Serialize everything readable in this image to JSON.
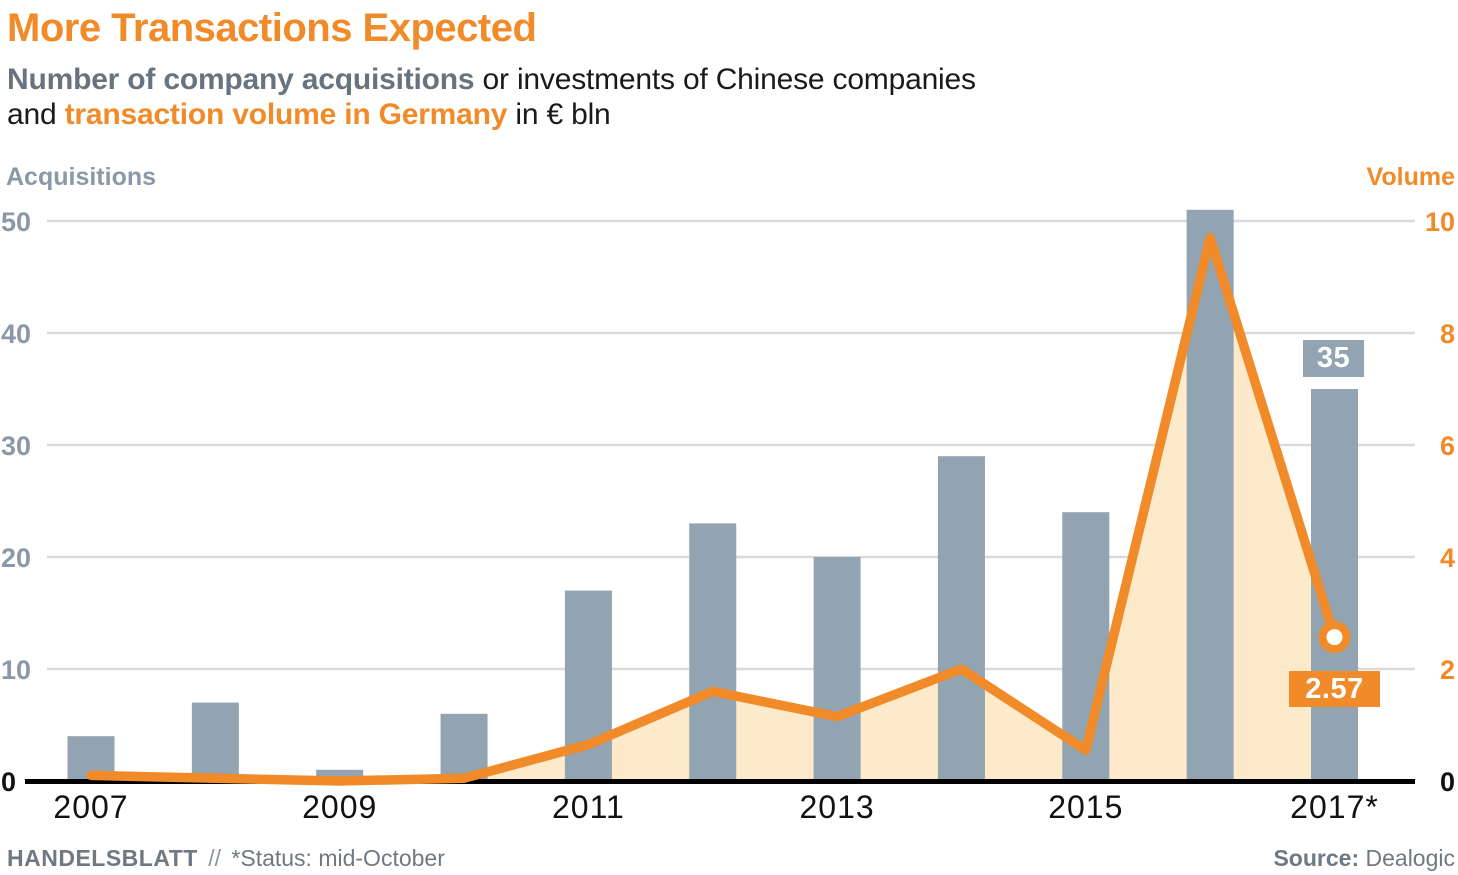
{
  "header": {
    "title": "More Transactions Expected",
    "subtitle": {
      "line1_bold": "Number of company acquisitions",
      "line1_rest": " or investments of Chinese companies",
      "line2_pre": "and ",
      "line2_orange": "transaction volume in Germany",
      "line2_rest": " in € bln"
    }
  },
  "axes": {
    "left_title": "Acquisitions",
    "right_title": "Volume",
    "left_ticks": [
      0,
      10,
      20,
      30,
      40,
      50
    ],
    "right_ticks": [
      0,
      2,
      4,
      6,
      8,
      10
    ],
    "x_tick_labels": [
      "2007",
      "2009",
      "2011",
      "2013",
      "2015",
      "2017*"
    ]
  },
  "chart_data": {
    "type": "combo",
    "categories": [
      2007,
      2008,
      2009,
      2010,
      2011,
      2012,
      2013,
      2014,
      2015,
      2016,
      2017
    ],
    "series": [
      {
        "name": "Acquisitions",
        "type": "bar",
        "axis": "left",
        "values": [
          4,
          7,
          1,
          6,
          17,
          23,
          20,
          29,
          24,
          51,
          35
        ]
      },
      {
        "name": "Volume",
        "type": "line",
        "axis": "right",
        "values": [
          0.1,
          0.05,
          0.0,
          0.05,
          0.65,
          1.6,
          1.15,
          2.0,
          0.55,
          9.7,
          2.57
        ]
      }
    ],
    "left_axis": {
      "label": "Acquisitions",
      "range": [
        0,
        50
      ]
    },
    "right_axis": {
      "label": "Volume",
      "range": [
        0,
        10
      ]
    },
    "x_tick_positions": [
      2007,
      2009,
      2011,
      2013,
      2015,
      2017
    ],
    "grid": true,
    "legend_position": "none",
    "title": "More Transactions Expected",
    "subtitle": "Number of company acquisitions or investments of Chinese companies and transaction volume in Germany in € bln"
  },
  "annotations": {
    "bar_label": "35",
    "line_label": "2.57"
  },
  "footer": {
    "brand": "HANDELSBLATT",
    "separator": "//",
    "status_note": "*Status: mid-October",
    "source_label": "Source:",
    "source_value": "Dealogic"
  },
  "colors": {
    "orange": "#F18A28",
    "bar_gray": "#92A3B1",
    "area_cream": "#FDEACA",
    "subtitle_gray": "#67747F",
    "tick_gray": "#8A99A7",
    "grid_gray": "#DADADA",
    "text_dark": "#111111",
    "footer_gray": "#6F7982"
  }
}
